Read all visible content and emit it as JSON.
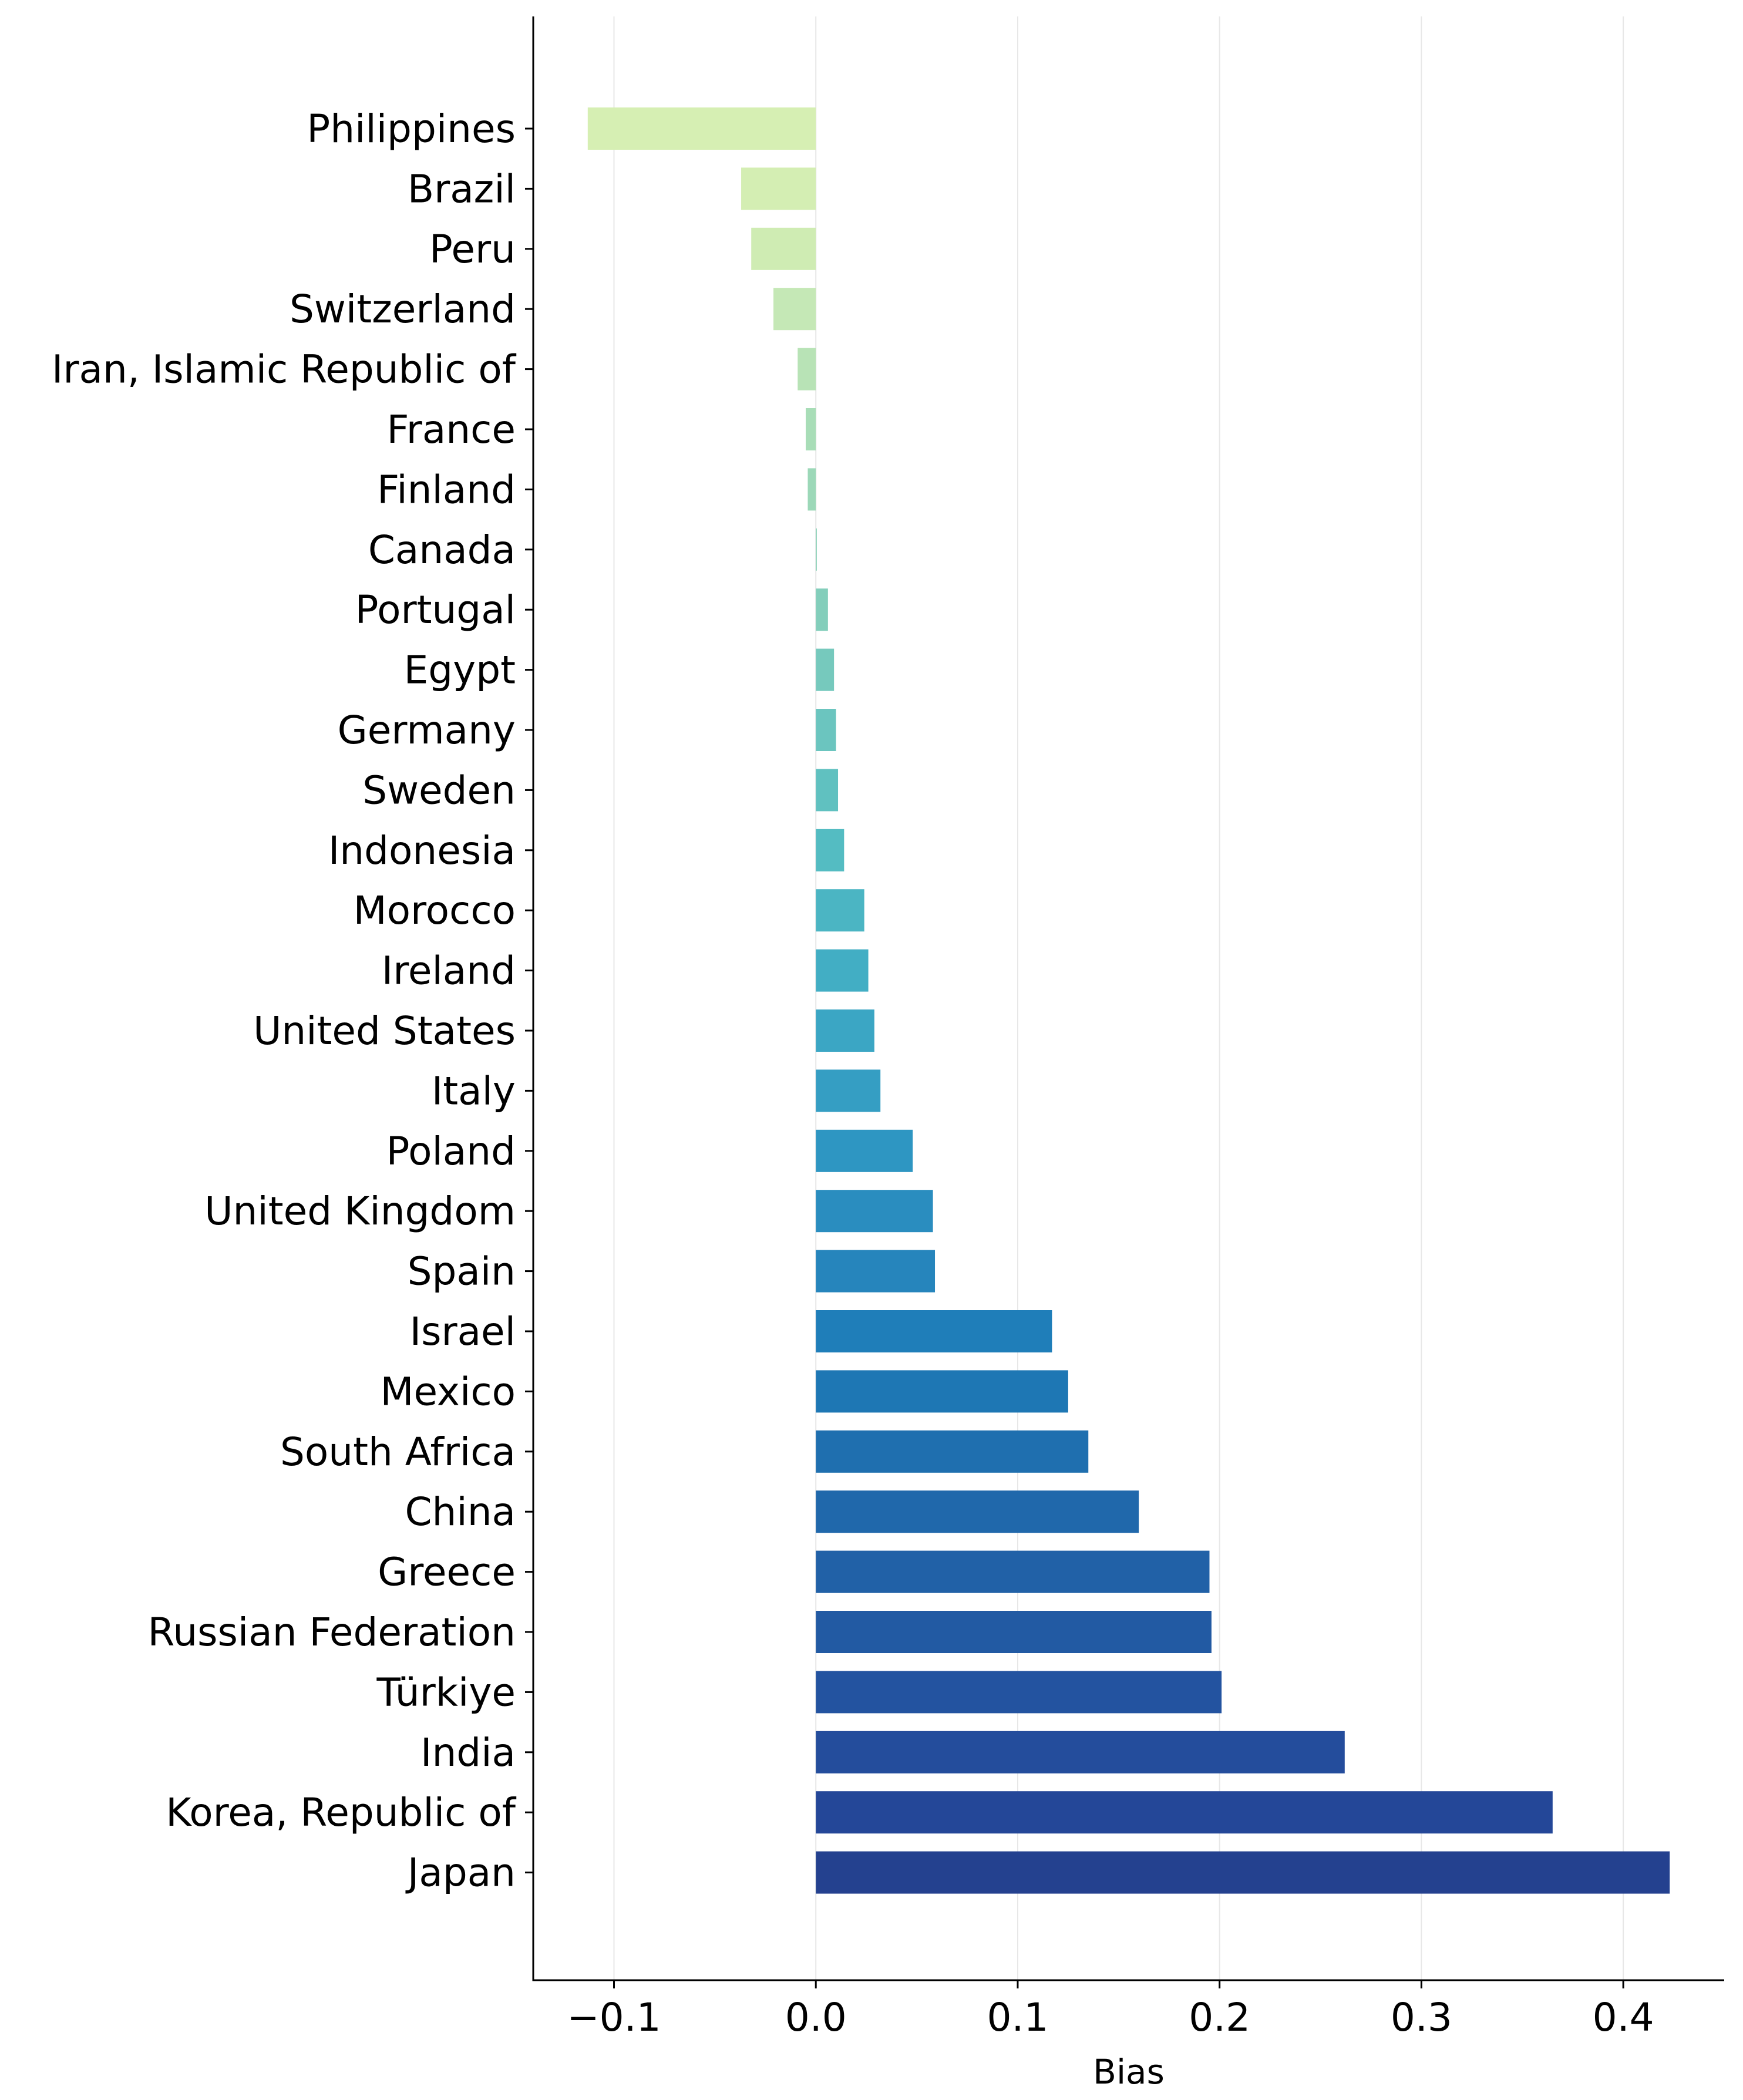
{
  "chart_data": {
    "type": "bar",
    "orientation": "horizontal",
    "title": "",
    "xlabel": "Bias",
    "ylabel": "",
    "xlim": [
      -0.14,
      0.45
    ],
    "xticks": [
      -0.1,
      0.0,
      0.1,
      0.2,
      0.3,
      0.4
    ],
    "xtick_labels": [
      "−0.1",
      "0.0",
      "0.1",
      "0.2",
      "0.3",
      "0.4"
    ],
    "grid": "vertical, faint",
    "colormap": "YlGnBu",
    "categories": [
      "Philippines",
      "Brazil",
      "Peru",
      "Switzerland",
      "Iran, Islamic Republic of",
      "France",
      "Finland",
      "Canada",
      "Portugal",
      "Egypt",
      "Germany",
      "Sweden",
      "Indonesia",
      "Morocco",
      "Ireland",
      "United States",
      "Italy",
      "Poland",
      "United Kingdom",
      "Spain",
      "Israel",
      "Mexico",
      "South Africa",
      "China",
      "Greece",
      "Russian Federation",
      "Türkiye",
      "India",
      "Korea, Republic of",
      "Japan"
    ],
    "values": [
      -0.113,
      -0.037,
      -0.032,
      -0.021,
      -0.009,
      -0.005,
      -0.004,
      0.0005,
      0.006,
      0.009,
      0.01,
      0.011,
      0.014,
      0.024,
      0.026,
      0.029,
      0.032,
      0.048,
      0.058,
      0.059,
      0.117,
      0.125,
      0.135,
      0.16,
      0.195,
      0.196,
      0.201,
      0.262,
      0.365,
      0.423
    ],
    "colors": [
      "#d6efb3",
      "#d4eeb3",
      "#cfecb3",
      "#c5e8b6",
      "#b8e3b6",
      "#a8ddb7",
      "#9cd8b8",
      "#8fd3ba",
      "#83cebb",
      "#76c9bd",
      "#6bc5bf",
      "#60c1c0",
      "#54bcc2",
      "#4bb5c3",
      "#42aec4",
      "#3ba6c4",
      "#359ec3",
      "#2e96c2",
      "#2a8dbf",
      "#2685bc",
      "#1f7eb9",
      "#1e77b4",
      "#1f6faf",
      "#2068ab",
      "#2161a7",
      "#225aa3",
      "#2353a0",
      "#244d9c",
      "#244798",
      "#24418f"
    ]
  }
}
